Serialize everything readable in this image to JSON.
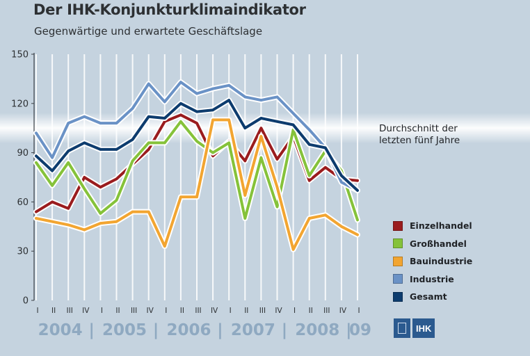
{
  "title": "Der IHK-Konjunkturklimaindikator",
  "subtitle": "Gegenwärtige und erwartete Geschäftslage",
  "average_label_line1": "Durchschnitt der",
  "average_label_line2": "letzten fünf Jahre",
  "colors": {
    "Einzelhandel": "#9a1c1e",
    "Großhandel": "#85c23a",
    "Bauindustrie": "#f2a531",
    "Industrie": "#6a92c6",
    "Gesamt": "#0d3c6e",
    "axis": "#3a3f45",
    "year_text": "#8fa9c1"
  },
  "logo": {
    "text": "IHK",
    "icon": "ihk-building-icon"
  },
  "chart_data": {
    "type": "line",
    "x": [
      "I",
      "II",
      "III",
      "IV",
      "I",
      "II",
      "III",
      "IV",
      "I",
      "II",
      "III",
      "IV",
      "I",
      "II",
      "III",
      "IV",
      "I",
      "II",
      "III",
      "IV",
      "I"
    ],
    "years": [
      {
        "label": "2004",
        "sep": ""
      },
      {
        "label": "2005",
        "sep": "|"
      },
      {
        "label": "2006",
        "sep": "|"
      },
      {
        "label": "2007",
        "sep": "|"
      },
      {
        "label": "2008",
        "sep": "|"
      },
      {
        "label": "09",
        "sep": "|"
      }
    ],
    "ylim": [
      0,
      150
    ],
    "yticks": [
      0,
      30,
      60,
      90,
      120,
      150
    ],
    "average_band": 105,
    "grid": "vertical",
    "legend_position": "right",
    "series": [
      {
        "name": "Einzelhandel",
        "values": [
          54,
          60,
          56,
          75,
          69,
          74,
          83,
          92,
          109,
          113,
          108,
          88,
          97,
          85,
          105,
          86,
          100,
          73,
          81,
          74,
          73
        ]
      },
      {
        "name": "Großhandel",
        "values": [
          84,
          70,
          84,
          68,
          53,
          61,
          85,
          96,
          96,
          109,
          97,
          90,
          96,
          50,
          87,
          57,
          104,
          76,
          91,
          79,
          49
        ]
      },
      {
        "name": "Bauindustrie",
        "values": [
          50,
          48,
          46,
          43,
          47,
          48,
          54,
          54,
          33,
          63,
          63,
          110,
          110,
          64,
          100,
          69,
          31,
          50,
          52,
          45,
          40
        ]
      },
      {
        "name": "Industrie",
        "values": [
          102,
          87,
          108,
          112,
          108,
          108,
          117,
          132,
          121,
          133,
          126,
          129,
          131,
          124,
          122,
          124,
          114,
          104,
          93,
          72,
          67
        ]
      },
      {
        "name": "Gesamt",
        "values": [
          88,
          79,
          91,
          96,
          92,
          92,
          98,
          112,
          111,
          120,
          115,
          116,
          122,
          105,
          111,
          109,
          107,
          95,
          93,
          76,
          67
        ]
      }
    ]
  }
}
